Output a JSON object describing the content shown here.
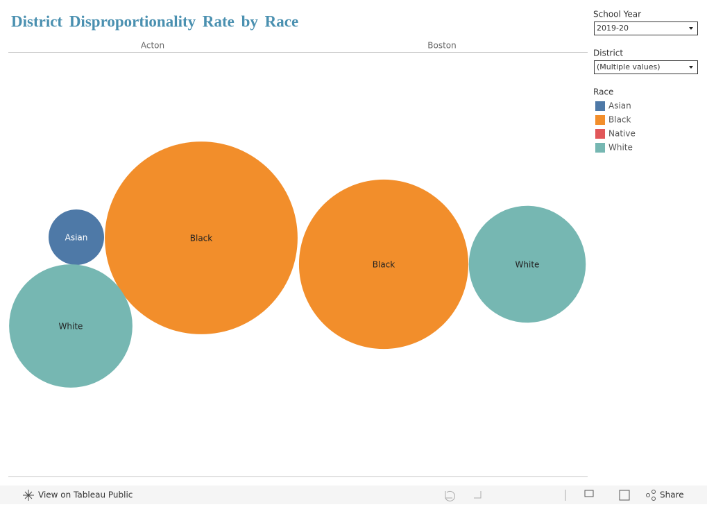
{
  "header": {
    "title": "District Disproportionality Rate by Race"
  },
  "chart_data": {
    "type": "bubble",
    "panels": [
      {
        "name": "Acton",
        "bubbles": [
          {
            "label": "Asian",
            "size": 1.6
          },
          {
            "label": "Black",
            "size": 19.3
          },
          {
            "label": "White",
            "size": 7.9
          }
        ]
      },
      {
        "name": "Boston",
        "bubbles": [
          {
            "label": "Black",
            "size": 14.9
          },
          {
            "label": "White",
            "size": 7.1
          }
        ]
      }
    ],
    "legend": {
      "title": "Race",
      "items": [
        {
          "name": "Asian",
          "color": "#4e79a7"
        },
        {
          "name": "Black",
          "color": "#f28e2b"
        },
        {
          "name": "Native",
          "color": "#e15759"
        },
        {
          "name": "White",
          "color": "#76b7b2"
        }
      ]
    }
  },
  "filters": [
    {
      "label": "School Year",
      "value": "2019-20"
    },
    {
      "label": "District",
      "value": "(Multiple values)"
    }
  ],
  "toolbar": {
    "view": "View on Tableau Public",
    "share": "Share"
  }
}
